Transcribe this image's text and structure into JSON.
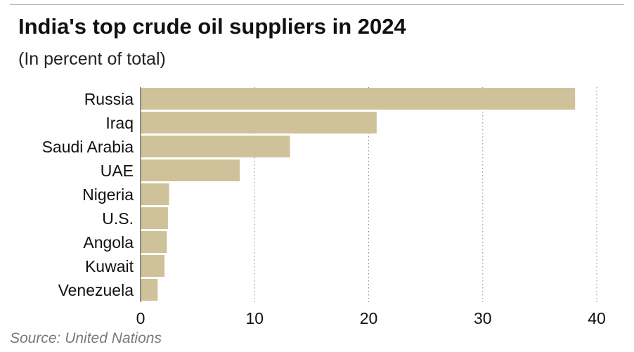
{
  "chart_data": {
    "type": "bar",
    "orientation": "horizontal",
    "title": "India's top crude oil suppliers in 2024",
    "subtitle": "(In percent of total)",
    "categories": [
      "Russia",
      "Iraq",
      "Saudi Arabia",
      "UAE",
      "Nigeria",
      "U.S.",
      "Angola",
      "Kuwait",
      "Venezuela"
    ],
    "values": [
      38.1,
      20.7,
      13.1,
      8.7,
      2.5,
      2.4,
      2.3,
      2.1,
      1.5
    ],
    "xlim": [
      0,
      40
    ],
    "xticks": [
      "0",
      "10",
      "20",
      "30",
      "40"
    ],
    "xlabel": "",
    "ylabel": "",
    "grid": "vertical dotted",
    "bar_color": "#cfc29a",
    "source": "Source: United Nations"
  }
}
